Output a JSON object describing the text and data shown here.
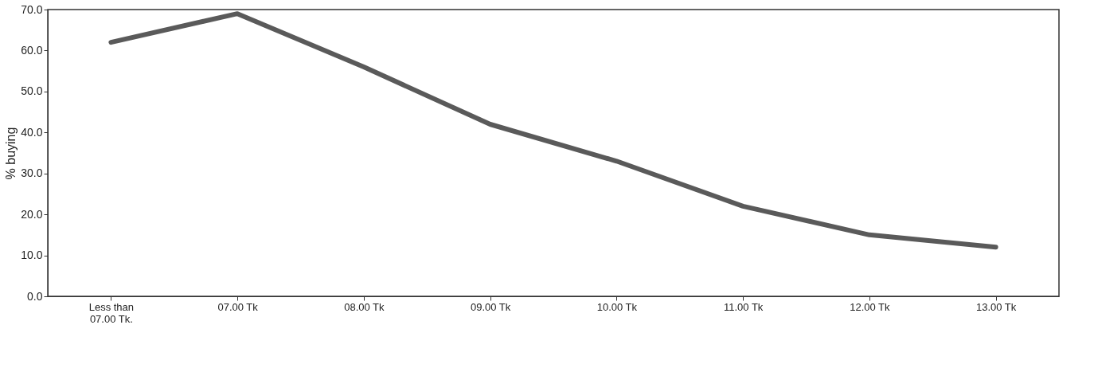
{
  "chart_data": {
    "type": "line",
    "ylabel": "% buying",
    "categories": [
      "Less than 07.00 Tk.",
      "07.00 Tk",
      "08.00 Tk",
      "09.00 Tk",
      "10.00 Tk",
      "11.00 Tk",
      "12.00 Tk",
      "13.00 Tk"
    ],
    "series": [
      {
        "color": "#5a5a5a",
        "values": [
          62,
          69,
          56,
          42,
          33,
          22,
          15,
          12
        ]
      }
    ],
    "ylim": [
      0,
      70
    ],
    "yticks": [
      {
        "value": 0,
        "label": "0.0"
      },
      {
        "value": 10,
        "label": "10.0"
      },
      {
        "value": 20,
        "label": "20.0"
      },
      {
        "value": 30,
        "label": "30.0"
      },
      {
        "value": 40,
        "label": "40.0"
      },
      {
        "value": 50,
        "label": "50.0"
      },
      {
        "value": 60,
        "label": "60.0"
      },
      {
        "value": 70,
        "label": "70.0"
      }
    ],
    "grid": false,
    "marker": "none",
    "line_style": "solid"
  }
}
